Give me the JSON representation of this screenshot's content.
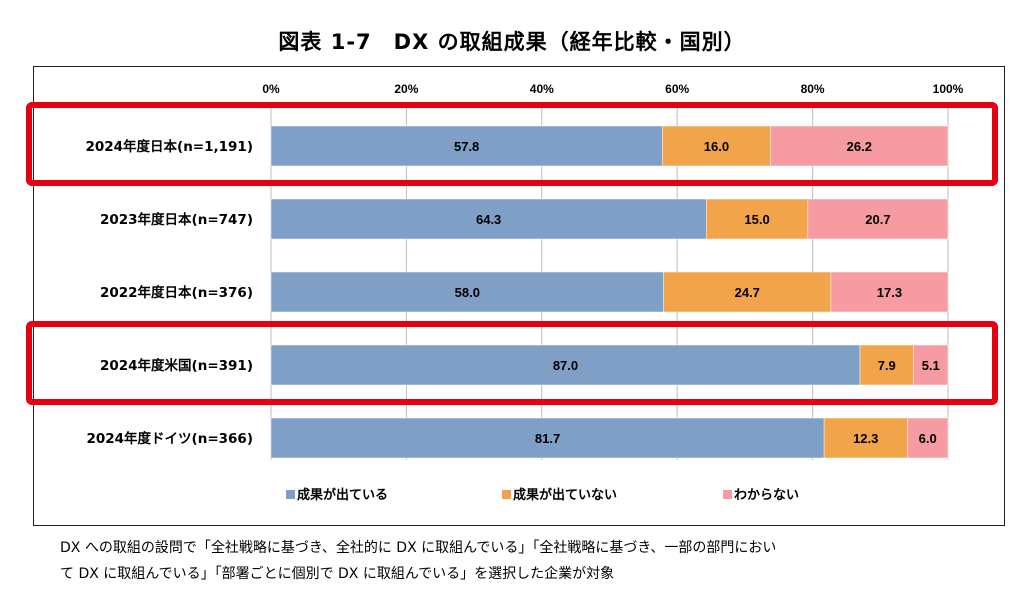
{
  "title": "図表 1-7　DX の取組成果（経年比較・国別）",
  "chart_data": {
    "type": "bar",
    "orientation": "horizontal",
    "stacked": true,
    "title": "図表 1-7　DX の取組成果（経年比較・国別）",
    "xlim": [
      0,
      100
    ],
    "x_ticks": [
      "0%",
      "20%",
      "40%",
      "60%",
      "80%",
      "100%"
    ],
    "grid": true,
    "legend_position": "bottom",
    "categories": [
      "2024年度日本(n=1,191)",
      "2023年度日本(n=747)",
      "2022年度日本(n=376)",
      "2024年度米国(n=391)",
      "2024年度ドイツ(n=366)"
    ],
    "series": [
      {
        "name": "成果が出ている",
        "color": "#7f9fc6",
        "values": [
          57.8,
          64.3,
          58.0,
          87.0,
          81.7
        ]
      },
      {
        "name": "成果が出ていない",
        "color": "#f2a44a",
        "values": [
          16.0,
          15.0,
          24.7,
          7.9,
          12.3
        ]
      },
      {
        "name": "わからない",
        "color": "#f79ba3",
        "values": [
          26.2,
          20.7,
          17.3,
          5.1,
          6.0
        ]
      }
    ],
    "highlighted_categories": [
      "2024年度日本(n=1,191)",
      "2024年度米国(n=391)"
    ],
    "highlight_color": "#e60012"
  },
  "footnote": {
    "line1": "DX への取組の設問で「全社戦略に基づき、全社的に DX に取組んでいる」「全社戦略に基づき、一部の部門におい",
    "line2": "て DX に取組んでいる」「部署ごとに個別で DX に取組んでいる」を選択した企業が対象"
  }
}
